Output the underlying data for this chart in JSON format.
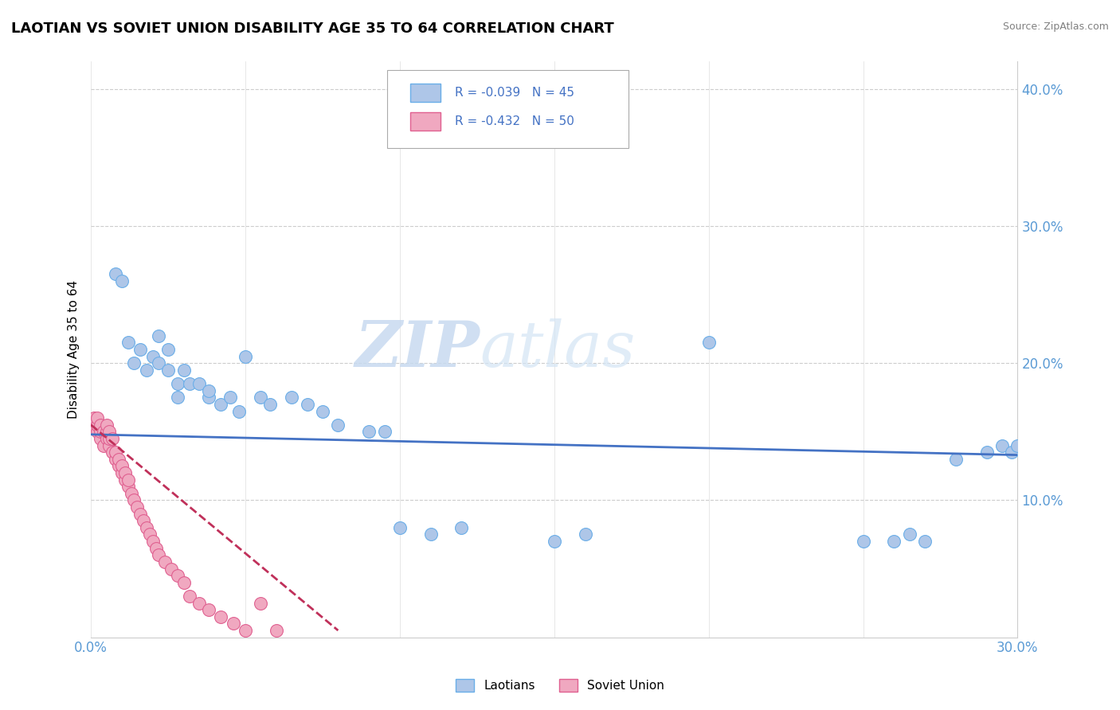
{
  "title": "LAOTIAN VS SOVIET UNION DISABILITY AGE 35 TO 64 CORRELATION CHART",
  "source": "Source: ZipAtlas.com",
  "ylabel": "Disability Age 35 to 64",
  "xlim": [
    0.0,
    0.3
  ],
  "ylim": [
    0.0,
    0.42
  ],
  "yticks": [
    0.1,
    0.2,
    0.3,
    0.4
  ],
  "ytick_labels": [
    "10.0%",
    "20.0%",
    "30.0%",
    "40.0%"
  ],
  "xticks": [
    0.0,
    0.05,
    0.1,
    0.15,
    0.2,
    0.25,
    0.3
  ],
  "watermark_zip": "ZIP",
  "watermark_atlas": "atlas",
  "laotians_color": "#aec6e8",
  "laotians_edge": "#6aaee8",
  "soviet_color": "#f0a8c0",
  "soviet_edge": "#e06090",
  "trend_laotians_color": "#4472c4",
  "trend_soviet_color": "#c0305a",
  "legend_laotians_r": "-0.039",
  "legend_laotians_n": "45",
  "legend_soviet_r": "-0.432",
  "legend_soviet_n": "50",
  "laotians_x": [
    0.008,
    0.01,
    0.012,
    0.014,
    0.016,
    0.018,
    0.02,
    0.022,
    0.022,
    0.025,
    0.025,
    0.028,
    0.028,
    0.03,
    0.032,
    0.035,
    0.038,
    0.038,
    0.042,
    0.045,
    0.048,
    0.05,
    0.055,
    0.058,
    0.065,
    0.07,
    0.075,
    0.08,
    0.09,
    0.095,
    0.1,
    0.11,
    0.12,
    0.15,
    0.16,
    0.2,
    0.25,
    0.26,
    0.265,
    0.27,
    0.28,
    0.29,
    0.295,
    0.298,
    0.3
  ],
  "laotians_y": [
    0.265,
    0.26,
    0.215,
    0.2,
    0.21,
    0.195,
    0.205,
    0.2,
    0.22,
    0.195,
    0.21,
    0.185,
    0.175,
    0.195,
    0.185,
    0.185,
    0.175,
    0.18,
    0.17,
    0.175,
    0.165,
    0.205,
    0.175,
    0.17,
    0.175,
    0.17,
    0.165,
    0.155,
    0.15,
    0.15,
    0.08,
    0.075,
    0.08,
    0.07,
    0.075,
    0.215,
    0.07,
    0.07,
    0.075,
    0.07,
    0.13,
    0.135,
    0.14,
    0.135,
    0.14
  ],
  "soviet_x": [
    0.001,
    0.001,
    0.002,
    0.002,
    0.002,
    0.003,
    0.003,
    0.003,
    0.004,
    0.004,
    0.005,
    0.005,
    0.005,
    0.006,
    0.006,
    0.006,
    0.007,
    0.007,
    0.008,
    0.008,
    0.009,
    0.009,
    0.01,
    0.01,
    0.011,
    0.011,
    0.012,
    0.012,
    0.013,
    0.014,
    0.015,
    0.016,
    0.017,
    0.018,
    0.019,
    0.02,
    0.021,
    0.022,
    0.024,
    0.026,
    0.028,
    0.03,
    0.032,
    0.035,
    0.038,
    0.042,
    0.046,
    0.05,
    0.055,
    0.06
  ],
  "soviet_y": [
    0.155,
    0.16,
    0.15,
    0.155,
    0.16,
    0.145,
    0.15,
    0.155,
    0.14,
    0.15,
    0.145,
    0.15,
    0.155,
    0.14,
    0.145,
    0.15,
    0.135,
    0.145,
    0.13,
    0.135,
    0.125,
    0.13,
    0.12,
    0.125,
    0.115,
    0.12,
    0.11,
    0.115,
    0.105,
    0.1,
    0.095,
    0.09,
    0.085,
    0.08,
    0.075,
    0.07,
    0.065,
    0.06,
    0.055,
    0.05,
    0.045,
    0.04,
    0.03,
    0.025,
    0.02,
    0.015,
    0.01,
    0.005,
    0.025,
    0.005
  ],
  "trend_laotians_x0": 0.0,
  "trend_laotians_x1": 0.3,
  "trend_laotians_y0": 0.148,
  "trend_laotians_y1": 0.133,
  "trend_soviet_x0": 0.0,
  "trend_soviet_x1": 0.08,
  "trend_soviet_y0": 0.155,
  "trend_soviet_y1": 0.005
}
